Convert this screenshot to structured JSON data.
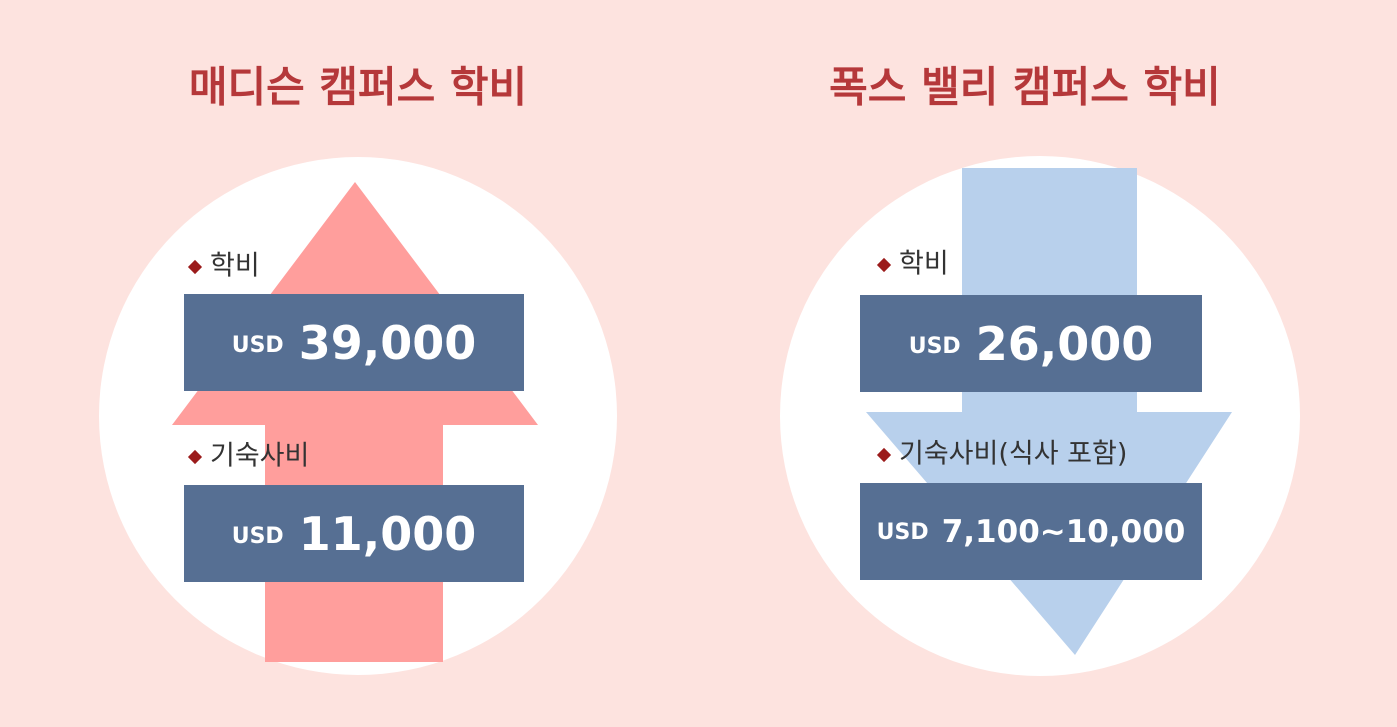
{
  "panels": [
    {
      "title": "매디슨 캠퍼스 학비",
      "items": [
        {
          "label": "학비",
          "currency": "USD",
          "amount": "39,000"
        },
        {
          "label": "기숙사비",
          "currency": "USD",
          "amount": "11,000"
        }
      ]
    },
    {
      "title": "폭스 밸리 캠퍼스 학비",
      "items": [
        {
          "label": "학비",
          "currency": "USD",
          "amount": "26,000"
        },
        {
          "label": "기숙사비(식사 포함)",
          "currency": "USD",
          "amount": "7,100~10,000"
        }
      ]
    }
  ]
}
